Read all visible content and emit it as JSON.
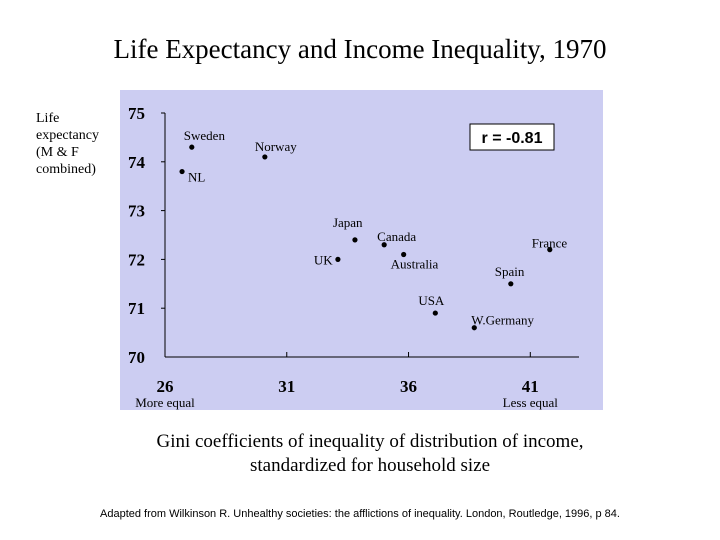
{
  "chart_data": {
    "type": "scatter",
    "title": "Life Expectancy and Income Inequality, 1970",
    "ylabel": [
      "Life",
      "expectancy",
      "(M & F",
      "combined)"
    ],
    "xlabel": [
      "Gini coefficients of inequality of distribution of income,",
      "standardized for household size"
    ],
    "x_end_labels": [
      "More equal",
      "Less equal"
    ],
    "xlim": [
      26,
      43
    ],
    "ylim": [
      70,
      75
    ],
    "xticks": [
      26,
      31,
      36,
      41
    ],
    "yticks": [
      75,
      74,
      73,
      72,
      71,
      70
    ],
    "annotation": "r = -0.81",
    "grid": false,
    "points": [
      {
        "label": "Sweden",
        "x": 27.1,
        "y": 74.3
      },
      {
        "label": "Norway",
        "x": 30.1,
        "y": 74.1
      },
      {
        "label": "NL",
        "x": 26.7,
        "y": 73.8
      },
      {
        "label": "Japan",
        "x": 33.8,
        "y": 72.4
      },
      {
        "label": "Canada",
        "x": 35.0,
        "y": 72.3
      },
      {
        "label": "France",
        "x": 41.8,
        "y": 72.2
      },
      {
        "label": "Australia",
        "x": 35.8,
        "y": 72.1
      },
      {
        "label": "UK",
        "x": 33.1,
        "y": 72.0
      },
      {
        "label": "Spain",
        "x": 40.2,
        "y": 71.5
      },
      {
        "label": "USA",
        "x": 37.1,
        "y": 70.9
      },
      {
        "label": "W.Germany",
        "x": 38.7,
        "y": 70.6
      }
    ]
  },
  "source": "Adapted from Wilkinson R.  Unhealthy societies: the afflictions of inequality. London, Routledge, 1996, p 84."
}
